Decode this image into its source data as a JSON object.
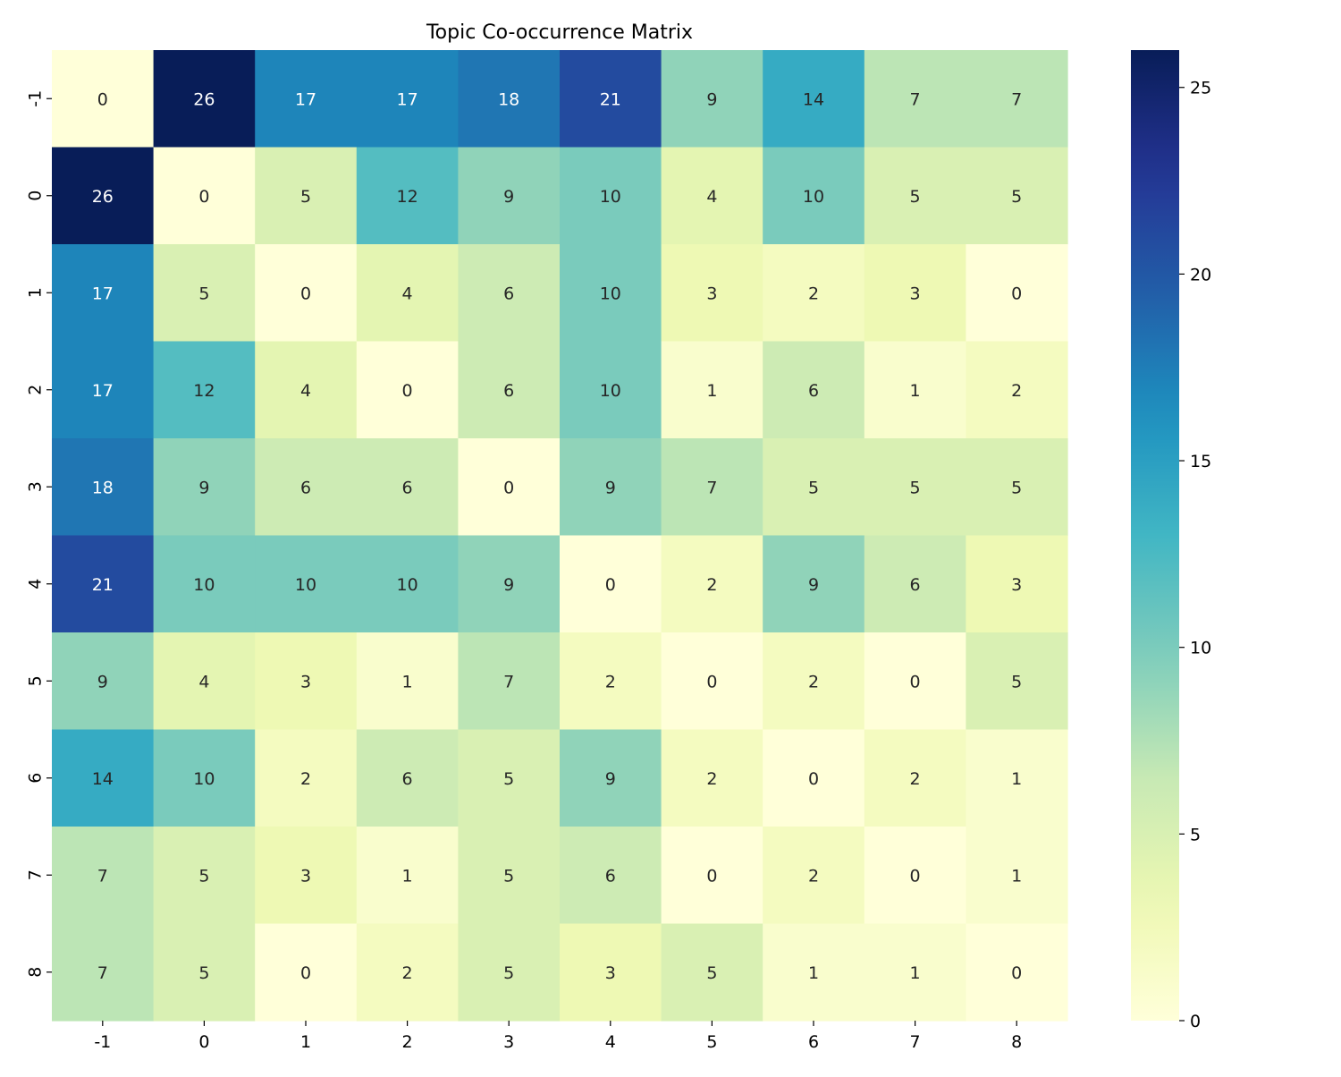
{
  "chart_data": {
    "type": "heatmap",
    "title": "Topic Co-occurrence Matrix",
    "xlabel": "",
    "ylabel": "",
    "x_categories": [
      "-1",
      "0",
      "1",
      "2",
      "3",
      "4",
      "5",
      "6",
      "7",
      "8"
    ],
    "y_categories": [
      "-1",
      "0",
      "1",
      "2",
      "3",
      "4",
      "5",
      "6",
      "7",
      "8"
    ],
    "values": [
      [
        0,
        26,
        17,
        17,
        18,
        21,
        9,
        14,
        7,
        7
      ],
      [
        26,
        0,
        5,
        12,
        9,
        10,
        4,
        10,
        5,
        5
      ],
      [
        17,
        5,
        0,
        4,
        6,
        10,
        3,
        2,
        3,
        0
      ],
      [
        17,
        12,
        4,
        0,
        6,
        10,
        1,
        6,
        1,
        2
      ],
      [
        18,
        9,
        6,
        6,
        0,
        9,
        7,
        5,
        5,
        5
      ],
      [
        21,
        10,
        10,
        10,
        9,
        0,
        2,
        9,
        6,
        3
      ],
      [
        9,
        4,
        3,
        1,
        7,
        2,
        0,
        2,
        0,
        5
      ],
      [
        14,
        10,
        2,
        6,
        5,
        9,
        2,
        0,
        2,
        1
      ],
      [
        7,
        5,
        3,
        1,
        5,
        6,
        0,
        2,
        0,
        1
      ],
      [
        7,
        5,
        0,
        2,
        5,
        3,
        5,
        1,
        1,
        0
      ]
    ],
    "annotations": true,
    "colormap": "YlGnBu",
    "vmin": 0,
    "vmax": 26,
    "colorbar": {
      "ticks": [
        0,
        5,
        10,
        15,
        20,
        25
      ],
      "tick_labels": [
        "0",
        "5",
        "10",
        "15",
        "20",
        "25"
      ]
    },
    "grid": false
  }
}
